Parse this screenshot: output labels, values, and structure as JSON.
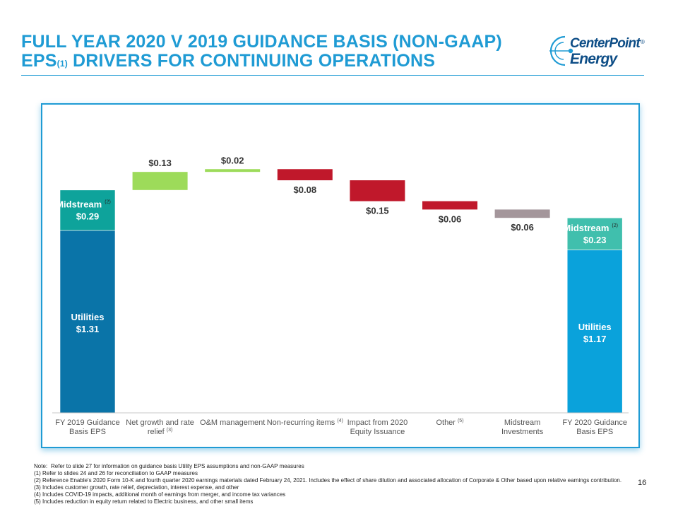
{
  "title": {
    "line1": "FULL YEAR 2020 V 2019 GUIDANCE BASIS (NON-GAAP)",
    "line2_a": "EPS",
    "line2_sup": "(1)",
    "line2_b": " DRIVERS FOR CONTINUING OPERATIONS"
  },
  "logo": {
    "line1": "CenterPoint",
    "line2": "Energy",
    "reg": "®"
  },
  "colors": {
    "accent": "#1f9bd4",
    "utilities_2019": "#0a74a8",
    "midstream_2019": "#0ea39b",
    "utilities_2020": "#0aa2db",
    "midstream_2020": "#40bfad",
    "increase": "#9ddb5a",
    "decrease": "#c0182b",
    "midstream_invest": "#a4969b"
  },
  "chart_data": {
    "type": "bar",
    "subtype": "waterfall",
    "ylim": [
      0,
      1.6
    ],
    "categories": [
      "FY 2019 Guidance Basis EPS",
      "Net growth and rate relief (3)",
      "O&M management",
      "Non-recurring items (4)",
      "Impact from 2020 Equity Issuance",
      "Other (5)",
      "Midstream Investments",
      "FY 2020 Guidance Basis EPS"
    ],
    "axis_labels": [
      {
        "lines": [
          "FY 2019 Guidance",
          "Basis EPS"
        ],
        "sup": ""
      },
      {
        "lines": [
          "Net growth and rate",
          "relief"
        ],
        "sup": "(3)"
      },
      {
        "lines": [
          "O&M management"
        ],
        "sup": ""
      },
      {
        "lines": [
          "Non-recurring items"
        ],
        "sup": "(4)"
      },
      {
        "lines": [
          "Impact from 2020",
          "Equity Issuance"
        ],
        "sup": ""
      },
      {
        "lines": [
          "Other"
        ],
        "sup": "(5)"
      },
      {
        "lines": [
          "Midstream",
          "Investments"
        ],
        "sup": ""
      },
      {
        "lines": [
          "FY 2020 Guidance",
          "Basis EPS"
        ],
        "sup": ""
      }
    ],
    "totals": [
      {
        "index": 0,
        "segments": [
          {
            "name": "Utilities",
            "value": 1.31,
            "label": "$1.31",
            "sup": ""
          },
          {
            "name": "Midstream",
            "value": 0.29,
            "label": "$0.29",
            "sup": "(2)"
          }
        ]
      },
      {
        "index": 7,
        "segments": [
          {
            "name": "Utilities",
            "value": 1.17,
            "label": "$1.17",
            "sup": ""
          },
          {
            "name": "Midstream",
            "value": 0.23,
            "label": "$0.23",
            "sup": "(2)"
          }
        ]
      }
    ],
    "changes": [
      {
        "index": 1,
        "value": 0.13,
        "label": "$0.13",
        "kind": "increase"
      },
      {
        "index": 2,
        "value": 0.02,
        "label": "$0.02",
        "kind": "increase"
      },
      {
        "index": 3,
        "value": -0.08,
        "label": "$0.08",
        "kind": "decrease"
      },
      {
        "index": 4,
        "value": -0.15,
        "label": "$0.15",
        "kind": "decrease"
      },
      {
        "index": 5,
        "value": -0.06,
        "label": "$0.06",
        "kind": "decrease"
      },
      {
        "index": 6,
        "value": -0.06,
        "label": "$0.06",
        "kind": "midstream"
      }
    ]
  },
  "notes": [
    {
      "marker": "Note:",
      "text": "Refer to slide 27 for information on guidance basis Utility EPS assumptions and non-GAAP measures"
    },
    {
      "marker": "(1)",
      "text": "Refer to slides 24 and 26 for reconciliation to GAAP measures"
    },
    {
      "marker": "(2)",
      "text": "Reference Enable's 2020 Form 10-K and fourth quarter 2020 earnings materials dated February 24, 2021. Includes the effect of share dilution and associated allocation of Corporate & Other based upon relative earnings contribution."
    },
    {
      "marker": "(3)",
      "text": "Includes customer growth, rate relief, depreciation, interest expense, and other"
    },
    {
      "marker": "(4)",
      "text": "Includes COVID-19 impacts, additional month of earnings from merger, and income tax variances"
    },
    {
      "marker": "(5)",
      "text": "Includes reduction in equity return related to Electric business, and other small items"
    }
  ],
  "page_number": "16"
}
